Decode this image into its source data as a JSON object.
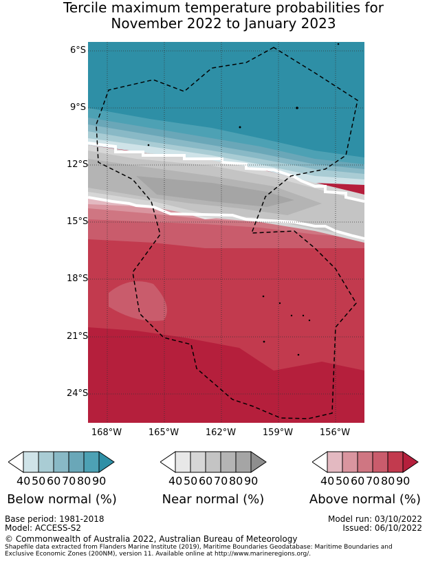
{
  "title": {
    "line1": "Tercile maximum temperature probabilities for",
    "line2": "November 2022 to January 2023"
  },
  "axes": {
    "lat_labels": [
      "6°S",
      "9°S",
      "12°S",
      "15°S",
      "18°S",
      "21°S",
      "24°S"
    ],
    "lon_labels": [
      "168°W",
      "165°W",
      "162°W",
      "159°W",
      "156°W"
    ]
  },
  "colors": {
    "below": [
      "#cfe3e8",
      "#a9ccd4",
      "#89b9c6",
      "#6aa7b8",
      "#4da1b4",
      "#2e8fa6"
    ],
    "near": [
      "#e8e8e8",
      "#d6d6d6",
      "#c4c4c4",
      "#b4b4b4",
      "#a5a5a5",
      "#8e8e8e"
    ],
    "above": [
      "#e3b9c1",
      "#d9959f",
      "#cf7682",
      "#c95c6c",
      "#c23a4e",
      "#b51f3c"
    ]
  },
  "legend": {
    "below": {
      "ticks": [
        "40",
        "50",
        "60",
        "70",
        "80",
        "90"
      ],
      "label": "Below normal (%)"
    },
    "near": {
      "ticks": [
        "40",
        "50",
        "60",
        "70",
        "80",
        "90"
      ],
      "label": "Near normal (%)"
    },
    "above": {
      "ticks": [
        "40",
        "50",
        "60",
        "70",
        "80",
        "90"
      ],
      "label": "Above normal (%)"
    }
  },
  "footer": {
    "base_period": "Base period: 1981-2018",
    "model": "Model: ACCESS-S2",
    "model_run": "Model run: 03/10/2022",
    "issued": "Issued: 06/10/2022",
    "copyright": "© Commonwealth of Australia 2022, Australian Bureau of Meteorology",
    "shapefile_line1": "Shapefile data extracted from Flanders Marine Institute (2019), Maritime Boundaries Geodatabase: Maritime Boundaries and",
    "shapefile_line2": "Exclusive Economic Zones (200NM), version 11. Available online at http://www.marineregions.org/."
  }
}
